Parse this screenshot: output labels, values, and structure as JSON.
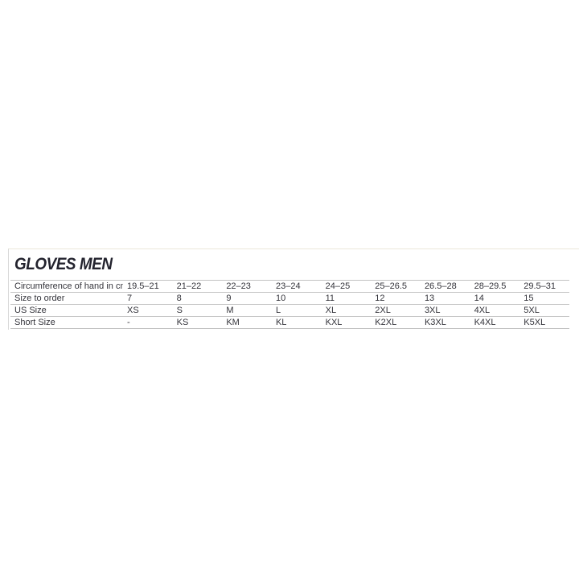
{
  "page": {
    "background_color": "#ffffff"
  },
  "size_chart": {
    "title": "GLOVES MEN",
    "columns_count": 10,
    "rows": [
      {
        "label": "Circumference of hand in cm",
        "values": [
          "19.5–21",
          "21–22",
          "22–23",
          "23–24",
          "24–25",
          "25–26.5",
          "26.5–28",
          "28–29.5",
          "29.5–31"
        ]
      },
      {
        "label": "Size to order",
        "values": [
          "7",
          "8",
          "9",
          "10",
          "11",
          "12",
          "13",
          "14",
          "15"
        ]
      },
      {
        "label": "US Size",
        "values": [
          "XS",
          "S",
          "M",
          "L",
          "XL",
          "2XL",
          "3XL",
          "4XL",
          "5XL"
        ]
      },
      {
        "label": "Short Size",
        "values": [
          "-",
          "KS",
          "KM",
          "KL",
          "KXL",
          "K2XL",
          "K3XL",
          "K4XL",
          "K5XL"
        ]
      }
    ],
    "colors": {
      "title": "#23232e",
      "text": "#33333a",
      "row_line": "#c3c3c3",
      "container_border_left": "#d8d8d8",
      "container_border_top": "#ebe7db"
    }
  },
  "chart_data": {
    "type": "table",
    "title": "GLOVES MEN",
    "column_headers": [
      "Circumference of hand in cm",
      "19.5–21",
      "21–22",
      "22–23",
      "23–24",
      "24–25",
      "25–26.5",
      "26.5–28",
      "28–29.5",
      "29.5–31"
    ],
    "rows": [
      [
        "Size to order",
        "7",
        "8",
        "9",
        "10",
        "11",
        "12",
        "13",
        "14",
        "15"
      ],
      [
        "US Size",
        "XS",
        "S",
        "M",
        "L",
        "XL",
        "2XL",
        "3XL",
        "4XL",
        "5XL"
      ],
      [
        "Short Size",
        "-",
        "KS",
        "KM",
        "KL",
        "KXL",
        "K2XL",
        "K3XL",
        "K4XL",
        "K5XL"
      ]
    ]
  }
}
